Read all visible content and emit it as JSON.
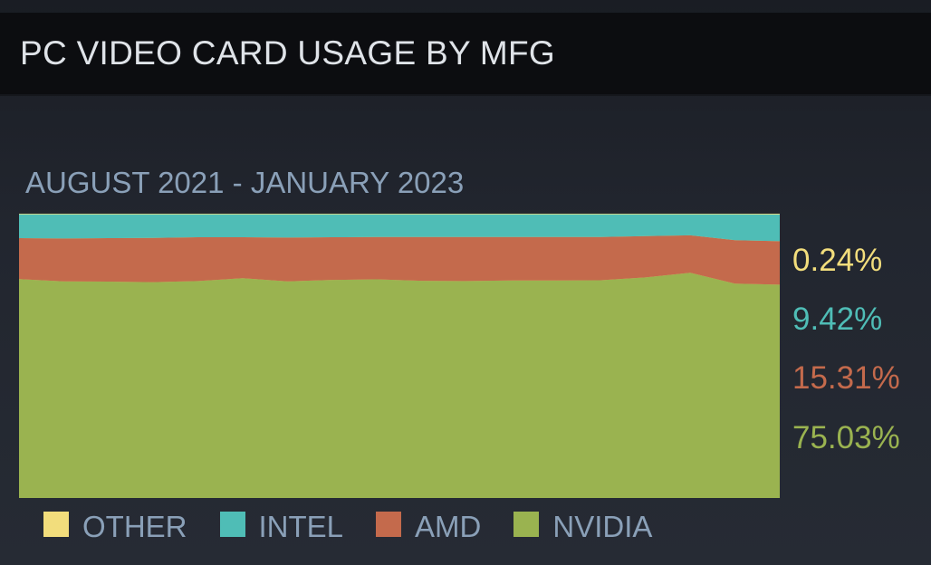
{
  "header": {
    "title": "PC VIDEO CARD USAGE BY MFG"
  },
  "chart_data": {
    "type": "area",
    "stacked": true,
    "normalized_percent": true,
    "title": "",
    "subtitle": "AUGUST 2021 - JANUARY 2023",
    "x": [
      "2021-08",
      "2021-09",
      "2021-10",
      "2021-11",
      "2021-12",
      "2022-01",
      "2022-02",
      "2022-03",
      "2022-04",
      "2022-05",
      "2022-06",
      "2022-07",
      "2022-08",
      "2022-09",
      "2022-10",
      "2022-11",
      "2022-12",
      "2023-01"
    ],
    "ylim": [
      0,
      100
    ],
    "series": [
      {
        "name": "NVIDIA",
        "color": "#9ab350",
        "values": [
          77.0,
          76.2,
          76.1,
          75.9,
          76.3,
          77.3,
          76.2,
          76.7,
          76.9,
          76.4,
          76.3,
          76.5,
          76.5,
          76.6,
          77.6,
          79.2,
          75.4,
          75.03
        ]
      },
      {
        "name": "AMD",
        "color": "#c46a4c",
        "values": [
          14.4,
          15.1,
          15.3,
          15.6,
          15.4,
          14.4,
          15.4,
          15.0,
          14.9,
          15.4,
          15.5,
          15.3,
          15.3,
          15.2,
          14.5,
          13.2,
          15.3,
          15.31
        ]
      },
      {
        "name": "INTEL",
        "color": "#4fbdb6",
        "values": [
          8.4,
          8.5,
          8.4,
          8.3,
          8.1,
          8.1,
          8.2,
          8.1,
          8.0,
          8.0,
          8.0,
          8.0,
          8.0,
          8.0,
          7.7,
          7.4,
          9.1,
          9.42
        ]
      },
      {
        "name": "OTHER",
        "color": "#f2dd7c",
        "values": [
          0.2,
          0.2,
          0.2,
          0.2,
          0.2,
          0.2,
          0.2,
          0.2,
          0.2,
          0.2,
          0.2,
          0.2,
          0.2,
          0.2,
          0.2,
          0.2,
          0.2,
          0.24
        ]
      }
    ],
    "latest_values": [
      {
        "name": "OTHER",
        "label": "0.24%",
        "color": "#f2dd7c"
      },
      {
        "name": "INTEL",
        "label": "9.42%",
        "color": "#4fbdb6"
      },
      {
        "name": "AMD",
        "label": "15.31%",
        "color": "#c46a4c"
      },
      {
        "name": "NVIDIA",
        "label": "75.03%",
        "color": "#9ab350"
      }
    ],
    "legend": {
      "placement": "bottom",
      "items": [
        {
          "name": "OTHER",
          "color": "#f2dd7c"
        },
        {
          "name": "INTEL",
          "color": "#4fbdb6"
        },
        {
          "name": "AMD",
          "color": "#c46a4c"
        },
        {
          "name": "NVIDIA",
          "color": "#9ab350"
        }
      ]
    },
    "grid": false
  }
}
